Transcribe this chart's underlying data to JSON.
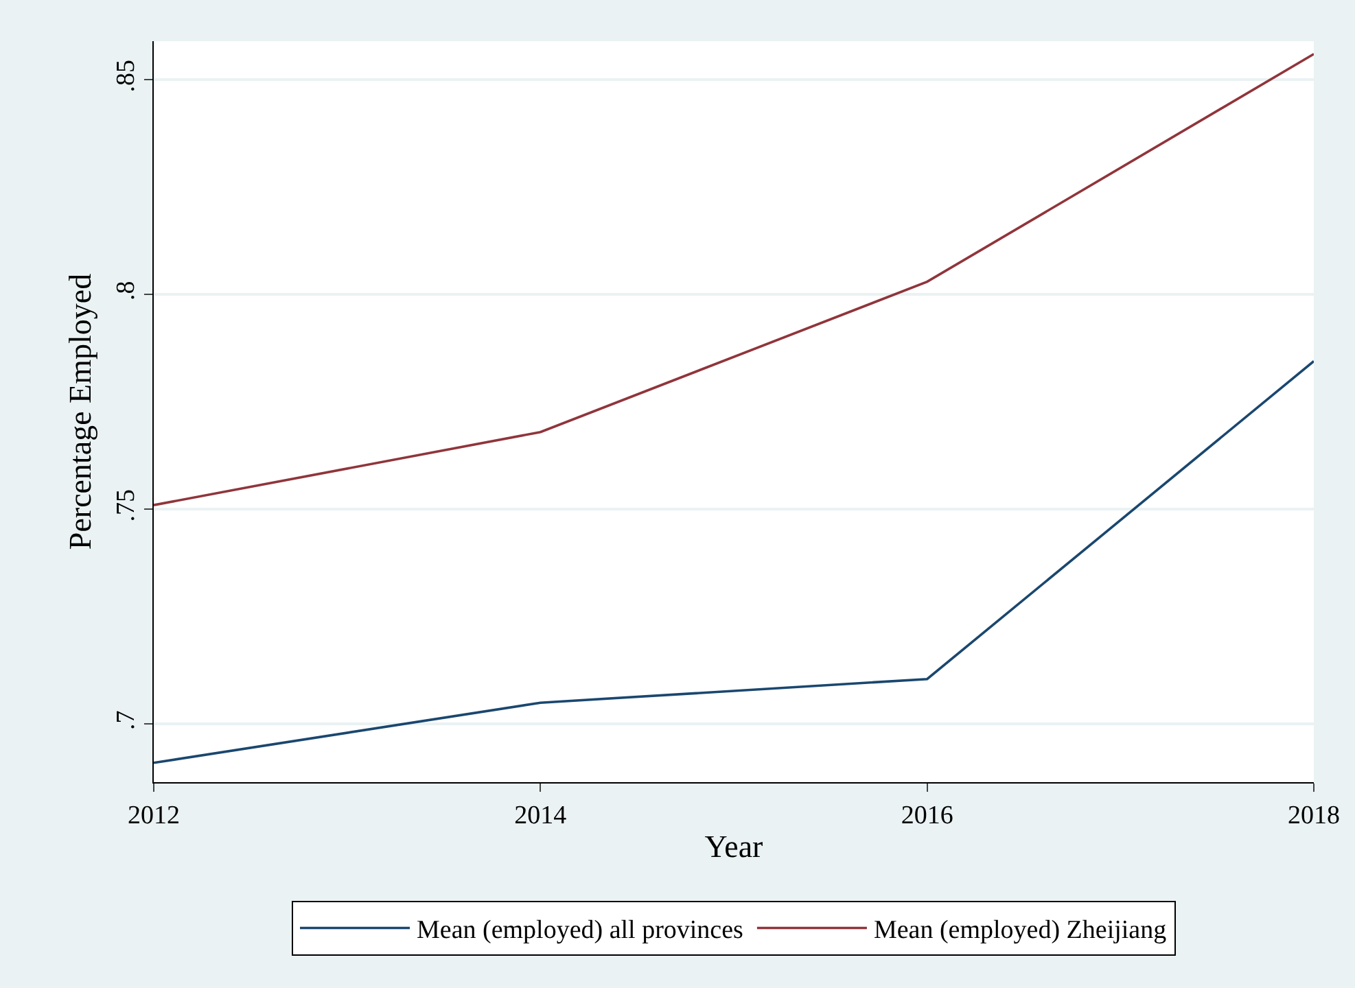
{
  "chart_data": {
    "type": "line",
    "xlabel": "Year",
    "ylabel": "Percentage Employed",
    "x": [
      2012,
      2014,
      2016,
      2018
    ],
    "series": [
      {
        "name": "Mean (employed) all provinces",
        "color": "#1a476f",
        "values": [
          0.691,
          0.705,
          0.7105,
          0.7845
        ]
      },
      {
        "name": "Mean (employed) Zheijiang",
        "color": "#90353b",
        "values": [
          0.751,
          0.768,
          0.803,
          0.856
        ]
      }
    ],
    "xlim": [
      2012,
      2018
    ],
    "xticks": [
      2012,
      2014,
      2016,
      2018
    ],
    "ylim": [
      0.6865,
      0.859
    ],
    "yticks": [
      {
        "value": 0.7,
        "label": ".7"
      },
      {
        "value": 0.75,
        "label": ".75"
      },
      {
        "value": 0.8,
        "label": ".8"
      },
      {
        "value": 0.85,
        "label": ".85"
      }
    ],
    "grid": "y",
    "legend": "bottom",
    "marker": "none",
    "line_style": "solid"
  }
}
